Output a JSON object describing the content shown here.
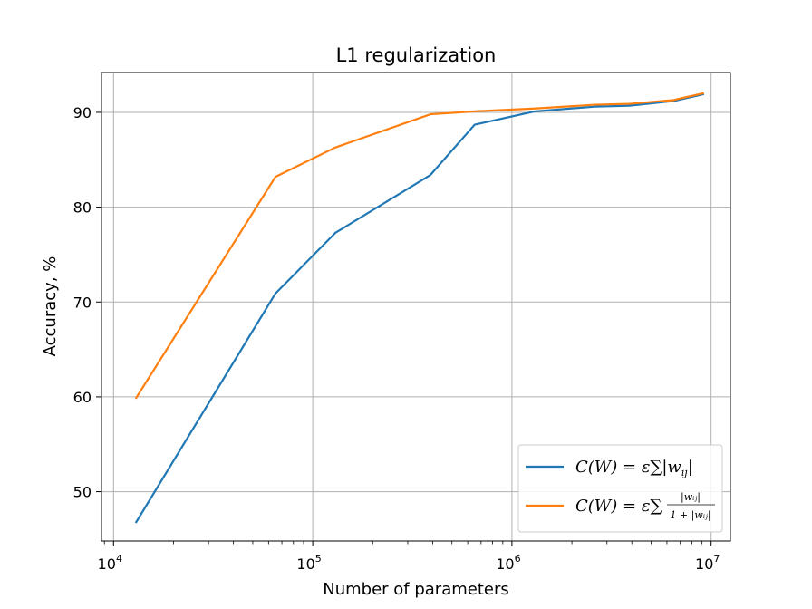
{
  "chart_data": {
    "type": "line",
    "title": "L1 regularization",
    "xlabel": "Number of parameters",
    "ylabel": "Accuracy, %",
    "xscale": "log",
    "xlim": [
      8700,
      12500000
    ],
    "ylim": [
      44.8,
      94.2
    ],
    "xticks": [
      {
        "value": 10000,
        "base": "10",
        "exp": "4"
      },
      {
        "value": 100000,
        "base": "10",
        "exp": "5"
      },
      {
        "value": 1000000,
        "base": "10",
        "exp": "6"
      },
      {
        "value": 10000000,
        "base": "10",
        "exp": "7"
      }
    ],
    "yticks": [
      50,
      60,
      70,
      80,
      90
    ],
    "grid": true,
    "legend_position": "lower-right",
    "series": [
      {
        "name": "C(W) = ε∑|wᵢⱼ|",
        "legend": {
          "lhs": "C(W) = ε∑",
          "body": "|w",
          "sub": "ij",
          "close": "|"
        },
        "color": "#1f77b4",
        "x": [
          13000,
          65000,
          130000,
          390000,
          650000,
          1300000,
          2600000,
          3900000,
          6500000,
          9100000
        ],
        "y": [
          46.8,
          70.9,
          77.3,
          83.4,
          88.7,
          90.1,
          90.6,
          90.7,
          91.2,
          91.9
        ]
      },
      {
        "name": "C(W) = ε∑|wᵢⱼ|/(1+|wᵢⱼ|)",
        "legend": {
          "lhs": "C(W) = ε∑",
          "num": "|wᵢⱼ|",
          "den": "1 + |wᵢⱼ|"
        },
        "color": "#ff7f0e",
        "x": [
          13000,
          65000,
          130000,
          390000,
          650000,
          1300000,
          2600000,
          3900000,
          6500000,
          9100000
        ],
        "y": [
          59.9,
          83.2,
          86.3,
          89.8,
          90.1,
          90.4,
          90.8,
          90.9,
          91.3,
          92.0
        ]
      }
    ]
  }
}
